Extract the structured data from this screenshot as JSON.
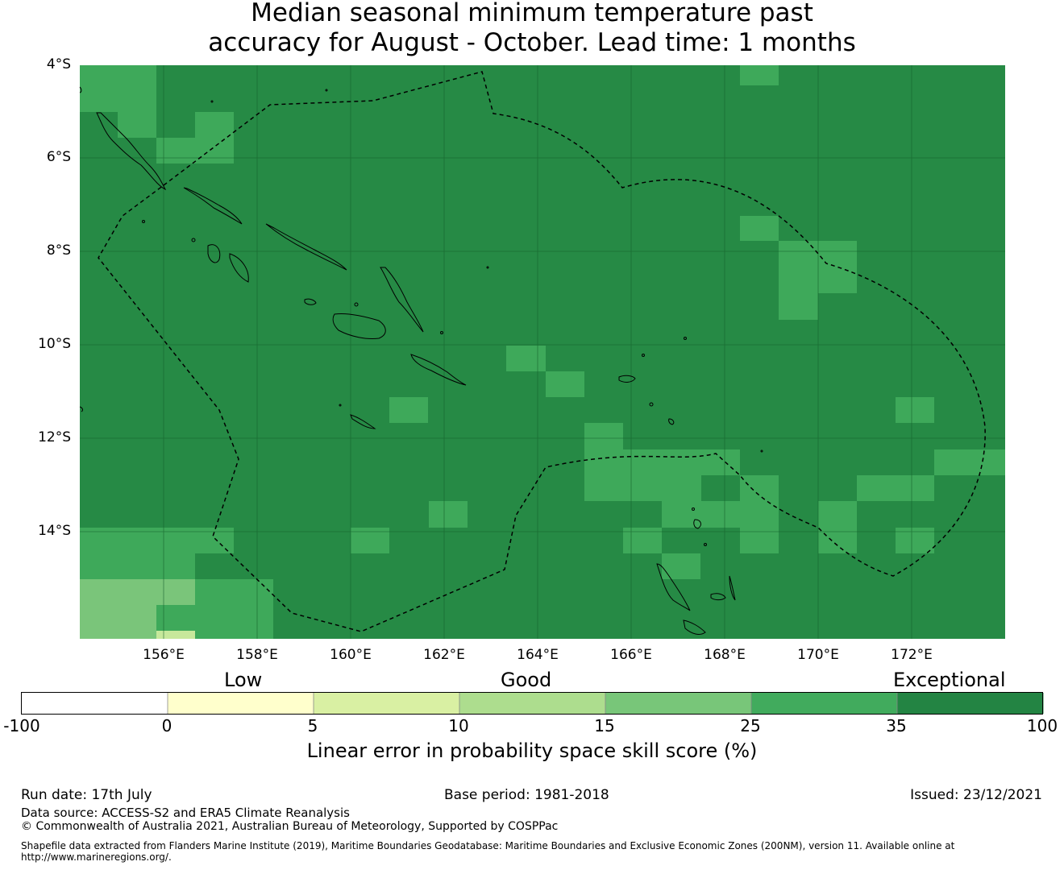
{
  "title_line1": "Median seasonal minimum temperature past",
  "title_line2": "accuracy for August - October. Lead time: 1 months",
  "map": {
    "lat_labels": [
      "4°S",
      "6°S",
      "8°S",
      "10°S",
      "12°S",
      "14°S"
    ],
    "lon_labels": [
      "156°E",
      "158°E",
      "160°E",
      "162°E",
      "164°E",
      "166°E",
      "168°E",
      "170°E",
      "172°E"
    ],
    "lat_range": [
      -16.3,
      -4.0
    ],
    "lon_range": [
      154.2,
      174.0
    ],
    "base_color": "#268a45",
    "coastline_color": "#000000",
    "eez_line_style": "dashed"
  },
  "colorbar": {
    "category_labels": [
      "Low",
      "Good",
      "Exceptional"
    ],
    "ticks": [
      "-100",
      "0",
      "5",
      "10",
      "15",
      "25",
      "35",
      "100"
    ],
    "colors": [
      "#ffffff",
      "#ffffcc",
      "#d9f0a3",
      "#addd8e",
      "#78c679",
      "#41ab5d",
      "#238443"
    ],
    "label": "Linear error in probability space skill score (%)"
  },
  "footer": {
    "run_date": "Run date: 17th July",
    "base_period": "Base period: 1981-2018",
    "issued": "Issued: 23/12/2021",
    "data_source": "Data source: ACCESS-S2 and ERA5 Climate Reanalysis",
    "copyright": "© Commonwealth of Australia 2021, Australian Bureau of Meteorology, Supported by COSPPac",
    "shapefile": "Shapefile data extracted from Flanders Marine Institute (2019), Maritime Boundaries Geodatabase: Maritime Boundaries and Exclusive Economic Zones (200NM), version 11. Available online at http://www.marineregions.org/."
  }
}
